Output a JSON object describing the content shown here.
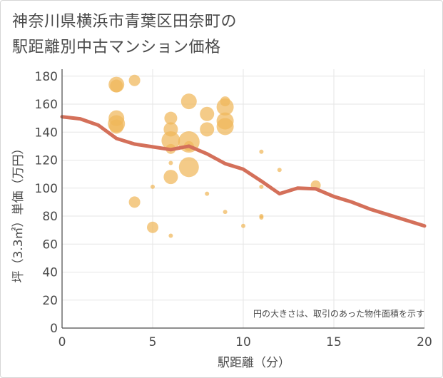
{
  "title_line1": "神奈川県横浜市青葉区田奈町の",
  "title_line2": "駅距離別中古マンション価格",
  "chart_data": {
    "type": "scatter",
    "title": "神奈川県横浜市青葉区田奈町の駅距離別中古マンション価格",
    "xlabel": "駅距離（分）",
    "ylabel": "坪（3.3㎡）単価（万円）",
    "xlim": [
      0,
      20
    ],
    "ylim": [
      0,
      185
    ],
    "x_ticks": [
      0,
      5,
      10,
      15,
      20
    ],
    "y_ticks": [
      0,
      20,
      40,
      60,
      80,
      100,
      120,
      140,
      160,
      180
    ],
    "grid": true,
    "annotation": "円の大きさは、取引のあった物件面積を示す",
    "colors": {
      "bubble": "#f0b75a",
      "line": "#d4705a",
      "grid": "#e6e6e6",
      "axis": "#4a4a4a"
    },
    "scatter_points": [
      {
        "x": 3,
        "y": 174,
        "size": 11
      },
      {
        "x": 3,
        "y": 173,
        "size": 9
      },
      {
        "x": 4,
        "y": 177,
        "size": 8
      },
      {
        "x": 3,
        "y": 150,
        "size": 11
      },
      {
        "x": 3,
        "y": 146,
        "size": 12
      },
      {
        "x": 3,
        "y": 144,
        "size": 10
      },
      {
        "x": 4,
        "y": 90,
        "size": 8
      },
      {
        "x": 5,
        "y": 101,
        "size": 3
      },
      {
        "x": 5,
        "y": 72,
        "size": 8
      },
      {
        "x": 6,
        "y": 150,
        "size": 9
      },
      {
        "x": 6,
        "y": 142,
        "size": 10
      },
      {
        "x": 6,
        "y": 134,
        "size": 13
      },
      {
        "x": 6,
        "y": 128,
        "size": 7
      },
      {
        "x": 6,
        "y": 118,
        "size": 3
      },
      {
        "x": 6,
        "y": 108,
        "size": 10
      },
      {
        "x": 6,
        "y": 66,
        "size": 3
      },
      {
        "x": 7,
        "y": 162,
        "size": 11
      },
      {
        "x": 7,
        "y": 133,
        "size": 15
      },
      {
        "x": 7,
        "y": 130,
        "size": 7
      },
      {
        "x": 7,
        "y": 115,
        "size": 14
      },
      {
        "x": 8,
        "y": 153,
        "size": 10
      },
      {
        "x": 8,
        "y": 142,
        "size": 10
      },
      {
        "x": 8,
        "y": 96,
        "size": 3
      },
      {
        "x": 9,
        "y": 162,
        "size": 7
      },
      {
        "x": 9,
        "y": 158,
        "size": 12
      },
      {
        "x": 9,
        "y": 148,
        "size": 12
      },
      {
        "x": 9,
        "y": 144,
        "size": 12
      },
      {
        "x": 9,
        "y": 83,
        "size": 3
      },
      {
        "x": 10,
        "y": 73,
        "size": 3
      },
      {
        "x": 11,
        "y": 126,
        "size": 3
      },
      {
        "x": 11,
        "y": 101,
        "size": 3
      },
      {
        "x": 11,
        "y": 80,
        "size": 3
      },
      {
        "x": 11,
        "y": 79,
        "size": 3
      },
      {
        "x": 12,
        "y": 113,
        "size": 3
      },
      {
        "x": 14,
        "y": 102,
        "size": 7
      }
    ],
    "trend_line": {
      "x": [
        0,
        1,
        2,
        3,
        4,
        5,
        6,
        7,
        8,
        9,
        10,
        11,
        12,
        13,
        14,
        15,
        16,
        17,
        18,
        19,
        20
      ],
      "y": [
        151,
        149.5,
        145,
        135.5,
        131.5,
        129.5,
        127.5,
        130,
        124.5,
        117.5,
        113.5,
        105,
        96,
        100,
        99.5,
        94,
        90,
        85,
        81,
        77,
        73
      ]
    }
  }
}
